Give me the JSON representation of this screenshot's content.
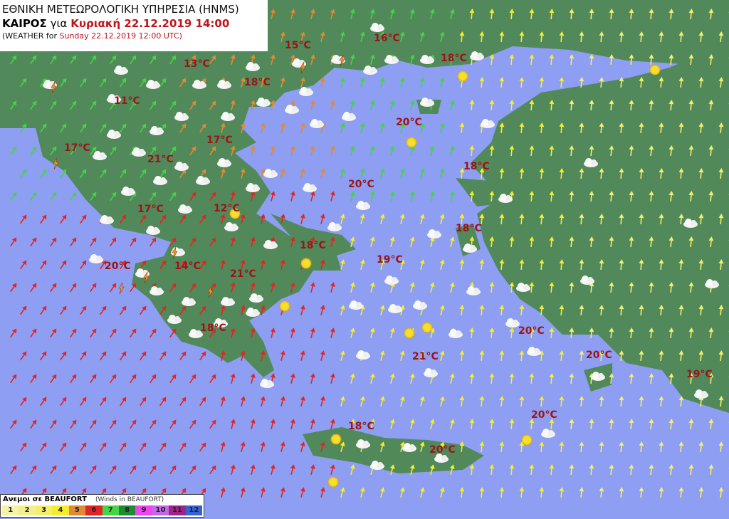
{
  "header": {
    "agency": "ΕΘΝΙΚΗ ΜΕΤΕΩΡΟΛΟΓΙΚΗ ΥΠΗΡΕΣΙΑ (HNMS)",
    "weather_label": "ΚΑΙΡΟΣ",
    "for_label": "για",
    "local_datetime": "Κυριακή 22.12.2019 14:00",
    "en_prefix": "(WEATHER for",
    "utc_datetime": "Sunday 22.12.2019 12:00 UTC)"
  },
  "temperatures": [
    "15°C",
    "16°C",
    "13°C",
    "18°C",
    "18°C",
    "11°C",
    "20°C",
    "17°C",
    "17°C",
    "21°C",
    "18°C",
    "20°C",
    "17°C",
    "12°C",
    "18°C",
    "18°C",
    "19°C",
    "20°C",
    "14°C",
    "21°C",
    "18°C",
    "20°C",
    "21°C",
    "20°C",
    "19°C",
    "20°C",
    "18°C",
    "20°C"
  ],
  "legend": {
    "title": "Ανεμοι σε BEAUFORT",
    "subtitle": "(Winds in BEAUFORT)",
    "scale": [
      {
        "label": "1",
        "color": "#f4f3a8"
      },
      {
        "label": "2",
        "color": "#f3ef8c"
      },
      {
        "label": "3",
        "color": "#f3ee6c"
      },
      {
        "label": "4",
        "color": "#f5ec2a"
      },
      {
        "label": "5",
        "color": "#e08a34"
      },
      {
        "label": "6",
        "color": "#e42424"
      },
      {
        "label": "7",
        "color": "#44d444"
      },
      {
        "label": "8",
        "color": "#228a34"
      },
      {
        "label": "9",
        "color": "#f044f0"
      },
      {
        "label": "10",
        "color": "#c468e4"
      },
      {
        "label": "11",
        "color": "#a02488"
      },
      {
        "label": "12",
        "color": "#3464d4"
      }
    ]
  },
  "colors": {
    "sea": "#8e9ef2",
    "land": "#4f8a55",
    "temperature": "#9c1418"
  }
}
